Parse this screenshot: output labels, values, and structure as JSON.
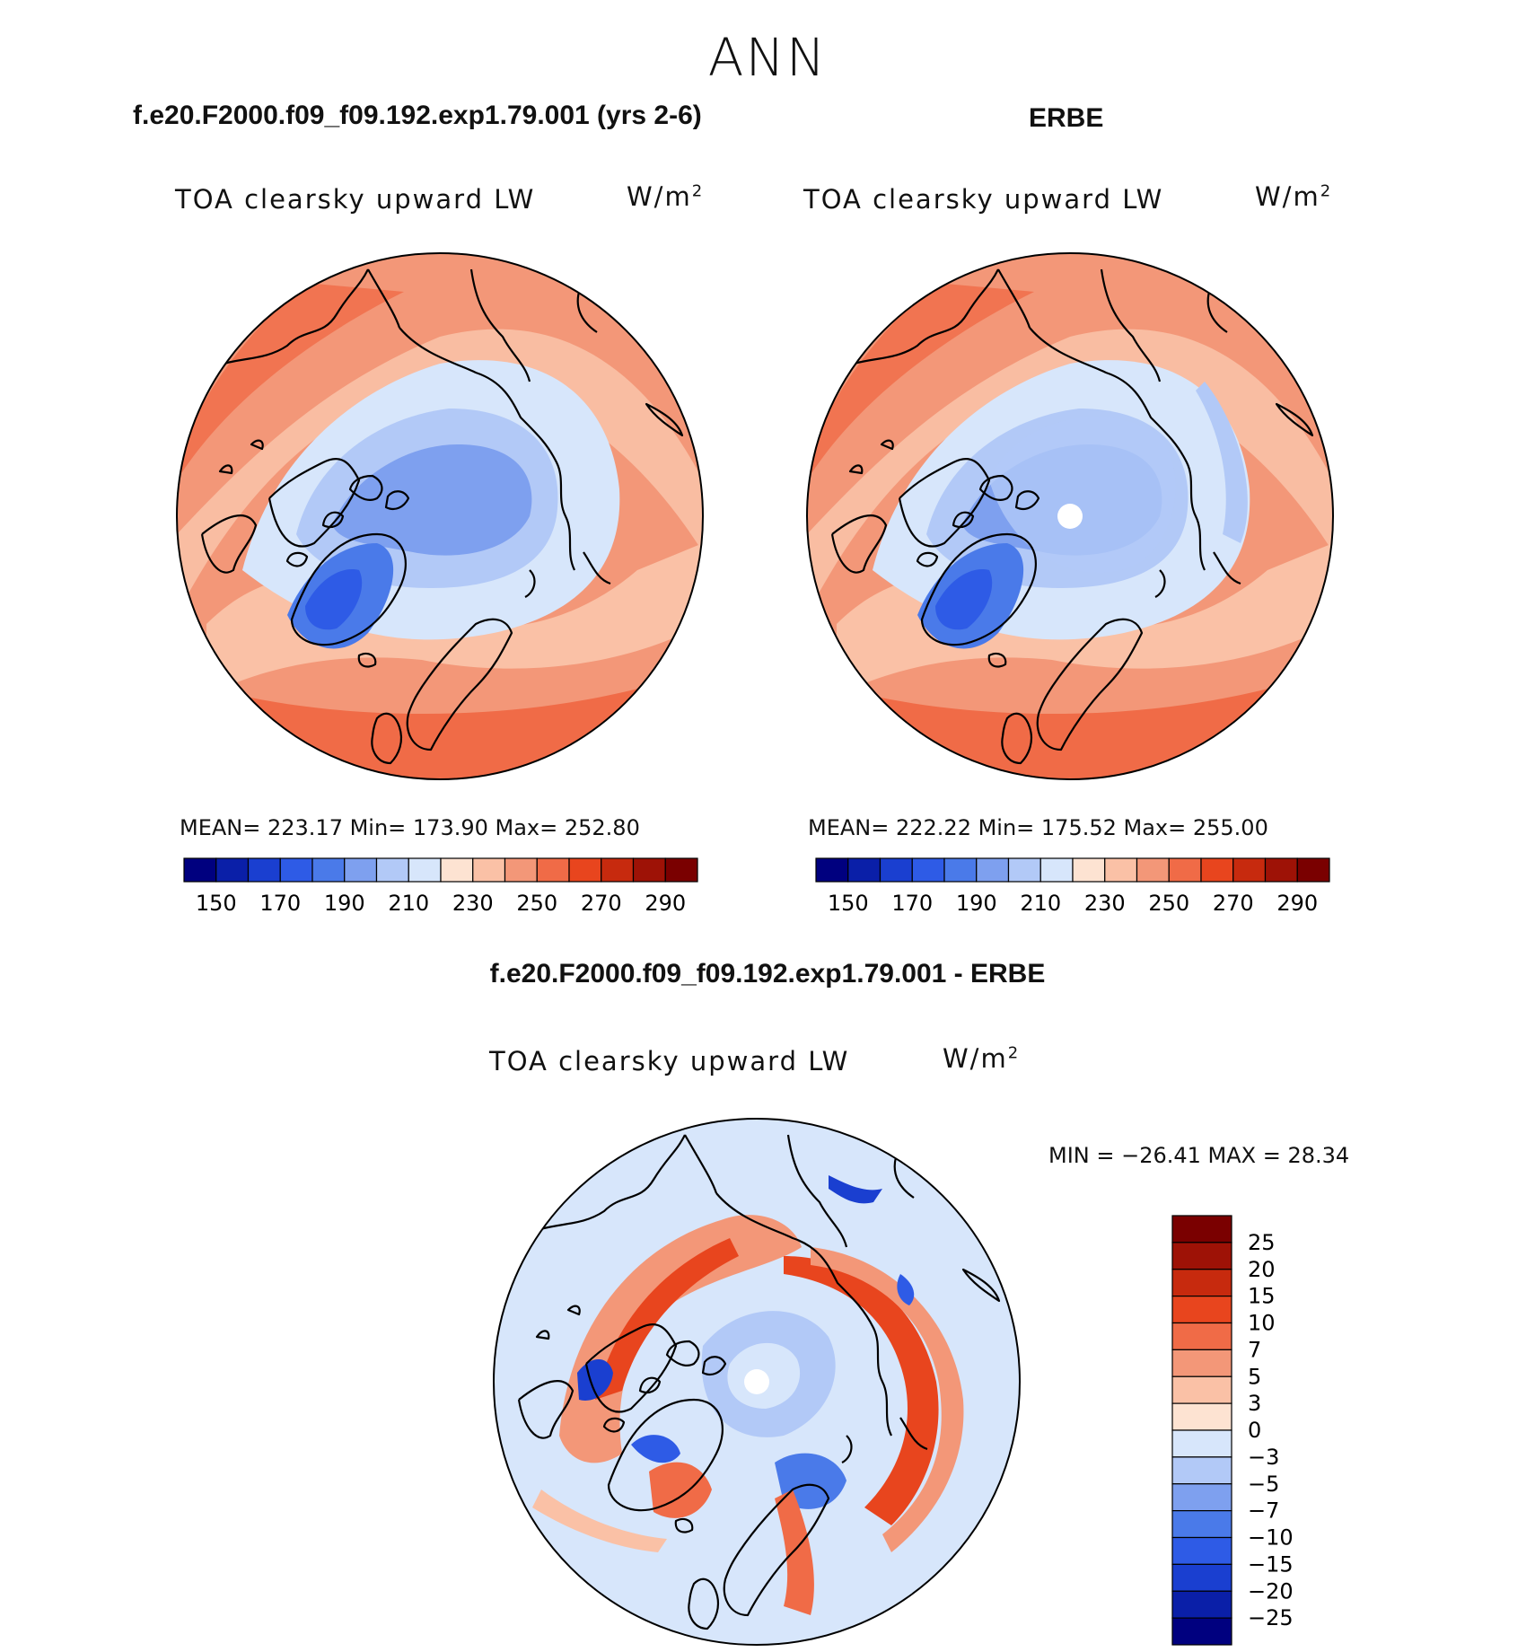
{
  "page": {
    "season": "ANN",
    "left_title": "f.e20.F2000.f09_f09.192.exp1.79.001 (yrs 2-6)",
    "right_title": "ERBE",
    "diff_title": "f.e20.F2000.f09_f09.192.exp1.79.001 - ERBE"
  },
  "panels": {
    "model": {
      "variable": "TOA clearsky upward LW",
      "units": "W/m",
      "units_sup": "2",
      "stats": "MEAN= 223.17   Min= 173.90   Max= 252.80"
    },
    "obs": {
      "variable": "TOA clearsky upward LW",
      "units": "W/m",
      "units_sup": "2",
      "stats": "MEAN= 222.22   Min= 175.52   Max= 255.00"
    },
    "diff": {
      "variable": "TOA clearsky upward LW",
      "units": "W/m",
      "units_sup": "2",
      "stats": "MIN = −26.41 MAX =   28.34"
    }
  },
  "chart_data": [
    {
      "type": "heatmap",
      "name": "model",
      "projection": "north polar stereographic",
      "colorbar_levels": [
        150,
        160,
        170,
        180,
        190,
        200,
        210,
        220,
        230,
        240,
        250,
        260,
        270,
        280,
        290
      ],
      "colorbar_labels": [
        "150",
        "170",
        "190",
        "210",
        "230",
        "250",
        "270",
        "290"
      ],
      "colors": [
        "#00007f",
        "#0a1fa8",
        "#1a3fd0",
        "#2e5be6",
        "#4a7ae9",
        "#7ea0ef",
        "#b2c9f7",
        "#d7e6fb",
        "#fde3d2",
        "#fac1a6",
        "#f39778",
        "#f06b47",
        "#e8451e",
        "#c72a0e",
        "#9e1206",
        "#7a0000"
      ],
      "mean": 223.17,
      "min": 173.9,
      "max": 252.8
    },
    {
      "type": "heatmap",
      "name": "obs",
      "projection": "north polar stereographic",
      "colorbar_levels": [
        150,
        160,
        170,
        180,
        190,
        200,
        210,
        220,
        230,
        240,
        250,
        260,
        270,
        280,
        290
      ],
      "colorbar_labels": [
        "150",
        "170",
        "190",
        "210",
        "230",
        "250",
        "270",
        "290"
      ],
      "colors": [
        "#00007f",
        "#0a1fa8",
        "#1a3fd0",
        "#2e5be6",
        "#4a7ae9",
        "#7ea0ef",
        "#b2c9f7",
        "#d7e6fb",
        "#fde3d2",
        "#fac1a6",
        "#f39778",
        "#f06b47",
        "#e8451e",
        "#c72a0e",
        "#9e1206",
        "#7a0000"
      ],
      "mean": 222.22,
      "min": 175.52,
      "max": 255.0
    },
    {
      "type": "heatmap",
      "name": "difference",
      "projection": "north polar stereographic",
      "colorbar_labels": [
        "25",
        "20",
        "15",
        "10",
        "7",
        "5",
        "3",
        "0",
        "−3",
        "−5",
        "−7",
        "−10",
        "−15",
        "−20",
        "−25"
      ],
      "colors": [
        "#7a0000",
        "#9e1206",
        "#c72a0e",
        "#e8451e",
        "#f06b47",
        "#f39778",
        "#fac1a6",
        "#fde3d2",
        "#d7e6fb",
        "#b2c9f7",
        "#7ea0ef",
        "#4a7ae9",
        "#2e5be6",
        "#1a3fd0",
        "#0a1fa8",
        "#00007f"
      ],
      "min": -26.41,
      "max": 28.34
    }
  ]
}
